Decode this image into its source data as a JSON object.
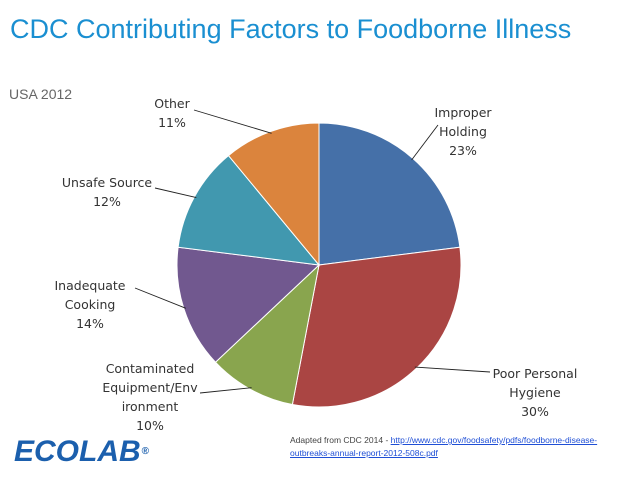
{
  "title": "CDC Contributing Factors to Foodborne Illness",
  "subtitle": "USA 2012",
  "logo": {
    "text": "ECOLAB",
    "mark": "®"
  },
  "source": {
    "prefix": "Adapted from  CDC 2014 - ",
    "link": "http://www.cdc.gov/foodsafety/pdfs/foodborne-disease-outbreaks-annual-report-2012-508c.pdf"
  },
  "chart_data": {
    "type": "pie",
    "slices": [
      {
        "label": [
          "Improper",
          "Holding"
        ],
        "value": 23,
        "value_label": "23%",
        "color": "#4570a8"
      },
      {
        "label": [
          "Poor Personal",
          "Hygiene"
        ],
        "value": 30,
        "value_label": "30%",
        "color": "#aa4543"
      },
      {
        "label": [
          "Contaminated",
          "Equipment/Env",
          "ironment"
        ],
        "value": 10,
        "value_label": "10%",
        "color": "#89a54e"
      },
      {
        "label": [
          "Inadequate",
          "Cooking"
        ],
        "value": 14,
        "value_label": "14%",
        "color": "#71588f"
      },
      {
        "label": [
          "Unsafe Source"
        ],
        "value": 12,
        "value_label": "12%",
        "color": "#4198af"
      },
      {
        "label": [
          "Other"
        ],
        "value": 11,
        "value_label": "11%",
        "color": "#db843d"
      }
    ],
    "start": "12 o'clock, clockwise"
  }
}
